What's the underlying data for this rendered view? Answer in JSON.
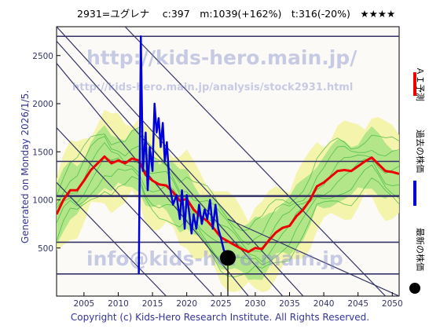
{
  "header": {
    "text": "2931=ユグレナ　 c:397　m:1039(+162%)　t:316(-20%)　★★★★"
  },
  "side_left": {
    "text": "Generated on Monday 2026/1/5."
  },
  "legend": {
    "ai_forecast": "ＡＩ予測",
    "past_price": "過去の株価",
    "latest_price": "最新の株価"
  },
  "watermarks": {
    "top_url": "http://kids-hero.main.jp/",
    "analysis_url": "http://kids-hero.main.jp/analysis/stock2931.html",
    "mail": "info@kids-hero.main.jp"
  },
  "footer": {
    "copyright": "Copyright (c) Kids-Hero Research Institute. All Rights Reserved."
  },
  "colors": {
    "background": "#ffffff",
    "plot_bg": "#fbfaf6",
    "ai_line": "#ee0000",
    "past_line": "#0000dd",
    "latest_dot": "#000000",
    "band_light": "#f2f2a0",
    "band_green": "#9ee27c",
    "band_lines": "#3ab43a",
    "axis_text": "#333366"
  },
  "chart_data": {
    "type": "line",
    "x_range": [
      2001,
      2051
    ],
    "y_range": [
      0,
      2800
    ],
    "x_ticks": [
      2005,
      2010,
      2015,
      2020,
      2025,
      2030,
      2035,
      2040,
      2045,
      2050
    ],
    "y_ticks": [
      0,
      500,
      1000,
      1500,
      2000,
      2500
    ],
    "horizontal_levels": [
      230,
      560,
      1040,
      1400,
      2700
    ],
    "latest": {
      "x": 2026.0,
      "y": 397
    },
    "series": [
      {
        "name": "ＡＩ予測",
        "color": "#ee0000",
        "points": [
          [
            2001,
            850
          ],
          [
            2002,
            1000
          ],
          [
            2003,
            1100
          ],
          [
            2004,
            1100
          ],
          [
            2005,
            1200
          ],
          [
            2006,
            1310
          ],
          [
            2007,
            1380
          ],
          [
            2008,
            1450
          ],
          [
            2009,
            1380
          ],
          [
            2010,
            1410
          ],
          [
            2011,
            1380
          ],
          [
            2012,
            1430
          ],
          [
            2013,
            1410
          ],
          [
            2014,
            1260
          ],
          [
            2015,
            1200
          ],
          [
            2016,
            1160
          ],
          [
            2017,
            1150
          ],
          [
            2018,
            1080
          ],
          [
            2019,
            990
          ],
          [
            2020,
            1010
          ],
          [
            2021,
            900
          ],
          [
            2022,
            830
          ],
          [
            2023,
            780
          ],
          [
            2024,
            700
          ],
          [
            2025,
            610
          ],
          [
            2026,
            570
          ],
          [
            2027,
            530
          ],
          [
            2028,
            490
          ],
          [
            2029,
            460
          ],
          [
            2030,
            500
          ],
          [
            2031,
            490
          ],
          [
            2032,
            580
          ],
          [
            2033,
            660
          ],
          [
            2034,
            710
          ],
          [
            2035,
            730
          ],
          [
            2036,
            830
          ],
          [
            2037,
            900
          ],
          [
            2038,
            1000
          ],
          [
            2039,
            1140
          ],
          [
            2040,
            1180
          ],
          [
            2041,
            1240
          ],
          [
            2042,
            1300
          ],
          [
            2043,
            1310
          ],
          [
            2044,
            1300
          ],
          [
            2045,
            1350
          ],
          [
            2046,
            1400
          ],
          [
            2047,
            1440
          ],
          [
            2048,
            1370
          ],
          [
            2049,
            1300
          ],
          [
            2050,
            1290
          ],
          [
            2051,
            1270
          ]
        ]
      },
      {
        "name": "過去の株価",
        "color": "#0000dd",
        "points": [
          [
            2013.0,
            230
          ],
          [
            2013.3,
            2700
          ],
          [
            2013.6,
            1300
          ],
          [
            2014.0,
            1700
          ],
          [
            2014.3,
            1100
          ],
          [
            2014.6,
            1550
          ],
          [
            2015.0,
            1300
          ],
          [
            2015.3,
            2000
          ],
          [
            2015.6,
            1700
          ],
          [
            2015.9,
            1850
          ],
          [
            2016.2,
            1550
          ],
          [
            2016.5,
            1800
          ],
          [
            2016.8,
            1400
          ],
          [
            2017.1,
            1600
          ],
          [
            2017.5,
            1150
          ],
          [
            2018.0,
            950
          ],
          [
            2018.5,
            1050
          ],
          [
            2019.0,
            800
          ],
          [
            2019.3,
            1100
          ],
          [
            2019.7,
            700
          ],
          [
            2020.0,
            1050
          ],
          [
            2020.3,
            900
          ],
          [
            2020.7,
            650
          ],
          [
            2021.0,
            850
          ],
          [
            2021.4,
            700
          ],
          [
            2021.8,
            950
          ],
          [
            2022.2,
            750
          ],
          [
            2022.6,
            900
          ],
          [
            2023.0,
            800
          ],
          [
            2023.4,
            1000
          ],
          [
            2023.8,
            700
          ],
          [
            2024.2,
            950
          ],
          [
            2024.6,
            700
          ],
          [
            2025.0,
            600
          ],
          [
            2025.4,
            480
          ],
          [
            2025.8,
            430
          ],
          [
            2026.0,
            397
          ]
        ]
      }
    ]
  }
}
